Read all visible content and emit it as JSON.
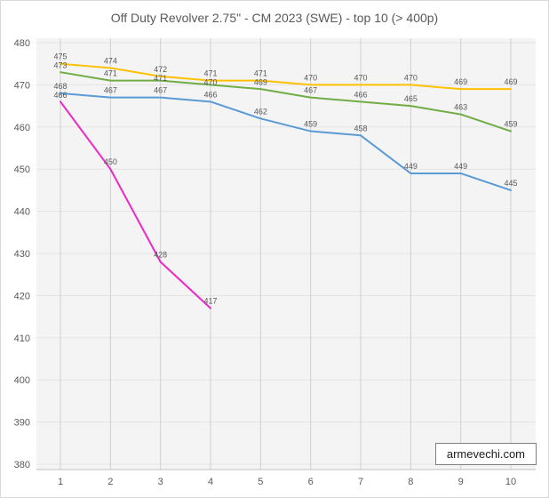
{
  "watermark": "armevechi.com",
  "colors": {
    "title_text": "#595959",
    "axis_text": "#595959",
    "label_text": "#595959",
    "plot_bg": "#f4f4f4",
    "vgrid": "#cfcfcf",
    "hgrid": "#e3e3e3",
    "axis_line": "#bfbfbf"
  },
  "chart_data": {
    "type": "line",
    "title": "Off Duty Revolver 2.75\" - CM 2023 (SWE) - top 10 (> 400p)",
    "x": [
      1,
      2,
      3,
      4,
      5,
      6,
      7,
      8,
      9,
      10
    ],
    "xlabel": "",
    "ylabel": "",
    "ylim": [
      380,
      480
    ],
    "ytick_step": 10,
    "grid": true,
    "legend": "none",
    "data_labels": true,
    "series": [
      {
        "color": "#FFC000",
        "values": [
          475,
          474,
          472,
          471,
          471,
          470,
          470,
          470,
          469,
          469
        ]
      },
      {
        "color": "#70AD47",
        "values": [
          473,
          471,
          471,
          470,
          469,
          467,
          466,
          465,
          463,
          459
        ]
      },
      {
        "color": "#5B9BD5",
        "values": [
          468,
          467,
          467,
          466,
          462,
          459,
          458,
          449,
          449,
          445
        ]
      },
      {
        "color": "#EE28C8",
        "values": [
          466,
          450,
          428,
          417
        ]
      }
    ]
  }
}
